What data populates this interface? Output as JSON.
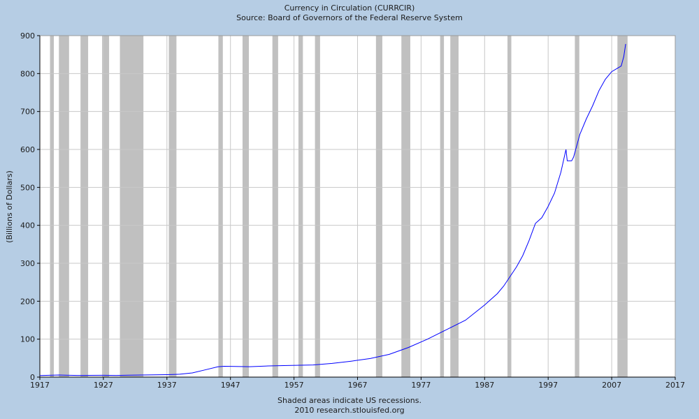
{
  "chart_data": {
    "type": "line",
    "title": "Currency in Circulation (CURRCIR)",
    "subtitle": "Source: Board of Governors of the Federal Reserve System",
    "xlabel": "",
    "ylabel": "(Billions of Dollars)",
    "footer_lines": [
      "Shaded areas indicate US recessions.",
      "2010 research.stlouisfed.org"
    ],
    "xlim": [
      1917,
      2017
    ],
    "ylim": [
      0,
      900
    ],
    "x_ticks": [
      1917,
      1927,
      1937,
      1947,
      1957,
      1967,
      1977,
      1987,
      1997,
      2007,
      2017
    ],
    "y_ticks": [
      0,
      100,
      200,
      300,
      400,
      500,
      600,
      700,
      800,
      900
    ],
    "grid": true,
    "colors": {
      "background": "#b6cde4",
      "plot": "#ffffff",
      "grid": "#c8c8c8",
      "recession": "#c0c0c0",
      "line": "#0000ff",
      "text": "#1a1a1a"
    },
    "recessions": [
      [
        1918.6,
        1919.2
      ],
      [
        1920.0,
        1921.6
      ],
      [
        1923.4,
        1924.6
      ],
      [
        1926.8,
        1927.9
      ],
      [
        1929.6,
        1933.3
      ],
      [
        1937.3,
        1938.5
      ],
      [
        1945.1,
        1945.8
      ],
      [
        1948.9,
        1949.9
      ],
      [
        1953.6,
        1954.5
      ],
      [
        1957.7,
        1958.4
      ],
      [
        1960.3,
        1961.1
      ],
      [
        1969.9,
        1970.9
      ],
      [
        1973.9,
        1975.3
      ],
      [
        1980.0,
        1980.6
      ],
      [
        1981.6,
        1982.9
      ],
      [
        1990.6,
        1991.2
      ],
      [
        2001.2,
        2001.9
      ],
      [
        2007.9,
        2009.5
      ]
    ],
    "series": [
      {
        "values": [
          [
            1917.0,
            4.0
          ],
          [
            1919.0,
            5.0
          ],
          [
            1920.0,
            5.5
          ],
          [
            1921.0,
            5.0
          ],
          [
            1923.0,
            4.5
          ],
          [
            1927.0,
            4.8
          ],
          [
            1929.0,
            4.5
          ],
          [
            1931.0,
            5.0
          ],
          [
            1933.0,
            5.5
          ],
          [
            1935.0,
            5.8
          ],
          [
            1937.0,
            6.5
          ],
          [
            1939.0,
            7.5
          ],
          [
            1941.0,
            11.0
          ],
          [
            1943.0,
            19.0
          ],
          [
            1945.0,
            27.0
          ],
          [
            1946.0,
            28.5
          ],
          [
            1947.0,
            28.3
          ],
          [
            1950.0,
            27.5
          ],
          [
            1953.0,
            29.5
          ],
          [
            1956.0,
            30.5
          ],
          [
            1960.0,
            32.0
          ],
          [
            1963.0,
            36.0
          ],
          [
            1966.0,
            42.0
          ],
          [
            1969.0,
            49.0
          ],
          [
            1972.0,
            60.0
          ],
          [
            1975.0,
            78.0
          ],
          [
            1978.0,
            100.0
          ],
          [
            1981.0,
            125.0
          ],
          [
            1984.0,
            150.0
          ],
          [
            1987.0,
            190.0
          ],
          [
            1989.0,
            220.0
          ],
          [
            1990.0,
            240.0
          ],
          [
            1991.0,
            265.0
          ],
          [
            1992.0,
            290.0
          ],
          [
            1993.0,
            320.0
          ],
          [
            1994.0,
            360.0
          ],
          [
            1995.0,
            405.0
          ],
          [
            1996.0,
            420.0
          ],
          [
            1997.0,
            450.0
          ],
          [
            1998.0,
            485.0
          ],
          [
            1999.0,
            540.0
          ],
          [
            1999.8,
            600.0
          ],
          [
            2000.0,
            570.0
          ],
          [
            2000.7,
            570.0
          ],
          [
            2001.0,
            580.0
          ],
          [
            2002.0,
            640.0
          ],
          [
            2003.0,
            680.0
          ],
          [
            2004.0,
            715.0
          ],
          [
            2005.0,
            755.0
          ],
          [
            2006.0,
            785.0
          ],
          [
            2007.0,
            805.0
          ],
          [
            2008.0,
            815.0
          ],
          [
            2008.5,
            820.0
          ],
          [
            2008.9,
            845.0
          ],
          [
            2009.2,
            878.0
          ]
        ]
      }
    ]
  }
}
